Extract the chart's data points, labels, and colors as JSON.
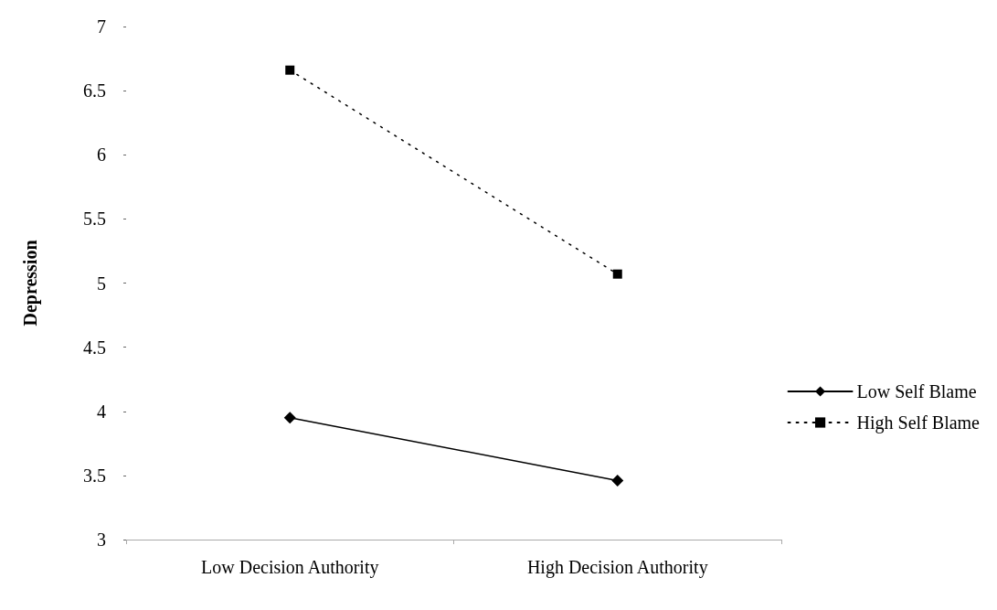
{
  "chart_data": {
    "type": "line",
    "ylabel": "Depression",
    "categories": [
      "Low Decision Authority",
      "High Decision Authority"
    ],
    "series": [
      {
        "name": "Low Self Blame",
        "color": "#000000",
        "marker": "diamond",
        "line_style": "solid",
        "values": [
          3.95,
          3.46
        ]
      },
      {
        "name": "High Self Blame",
        "color": "#000000",
        "marker": "square",
        "line_style": "dotted",
        "values": [
          6.66,
          5.07
        ]
      }
    ],
    "ylim": [
      3,
      7
    ],
    "yticks": [
      3,
      3.5,
      4,
      4.5,
      5,
      5.5,
      6,
      6.5,
      7
    ],
    "grid": false,
    "legend": "right"
  }
}
